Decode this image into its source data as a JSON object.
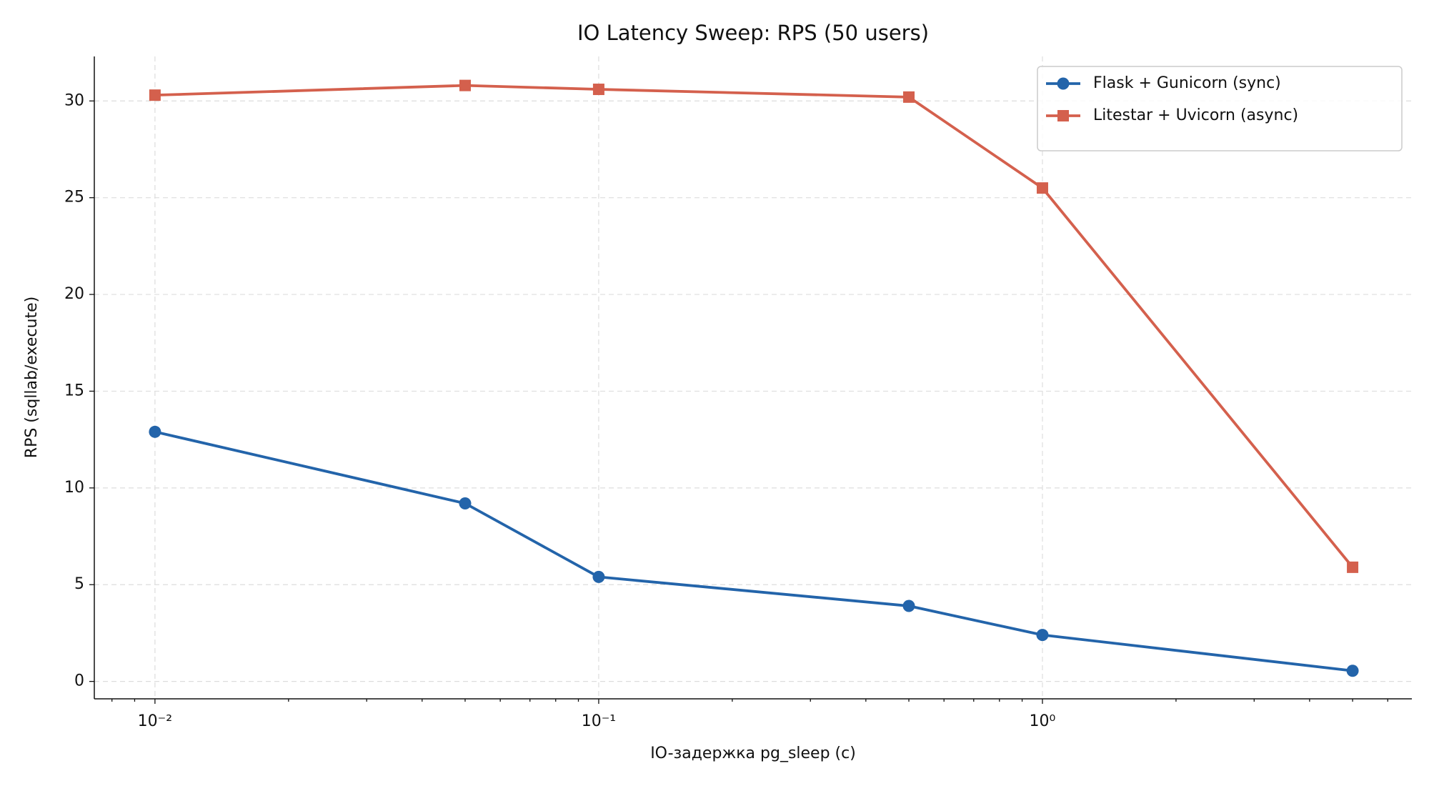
{
  "chart_data": {
    "type": "line",
    "title": "IO Latency Sweep: RPS (50 users)",
    "xlabel": "IO-задержка pg_sleep (с)",
    "ylabel": "RPS (sqllab/execute)",
    "x": [
      0.01,
      0.05,
      0.1,
      0.5,
      1,
      5
    ],
    "xscale": "log",
    "xlim": [
      0.0073,
      6.8
    ],
    "xticks": [
      {
        "value": 0.01,
        "label": "10⁻²"
      },
      {
        "value": 0.1,
        "label": "10⁻¹"
      },
      {
        "value": 1,
        "label": "10⁰"
      }
    ],
    "ylim": [
      -0.9,
      32.3
    ],
    "yticks": [
      0,
      5,
      10,
      15,
      20,
      25,
      30
    ],
    "grid": true,
    "legend": "upper right",
    "series": [
      {
        "name": "Flask + Gunicorn (sync)",
        "color": "#2364aa",
        "marker": "circle",
        "values": [
          12.9,
          9.2,
          5.4,
          3.9,
          2.4,
          0.55
        ]
      },
      {
        "name": "Litestar + Uvicorn (async)",
        "color": "#d4604d",
        "marker": "square",
        "values": [
          30.3,
          30.8,
          30.6,
          30.2,
          25.5,
          5.9
        ]
      }
    ]
  }
}
